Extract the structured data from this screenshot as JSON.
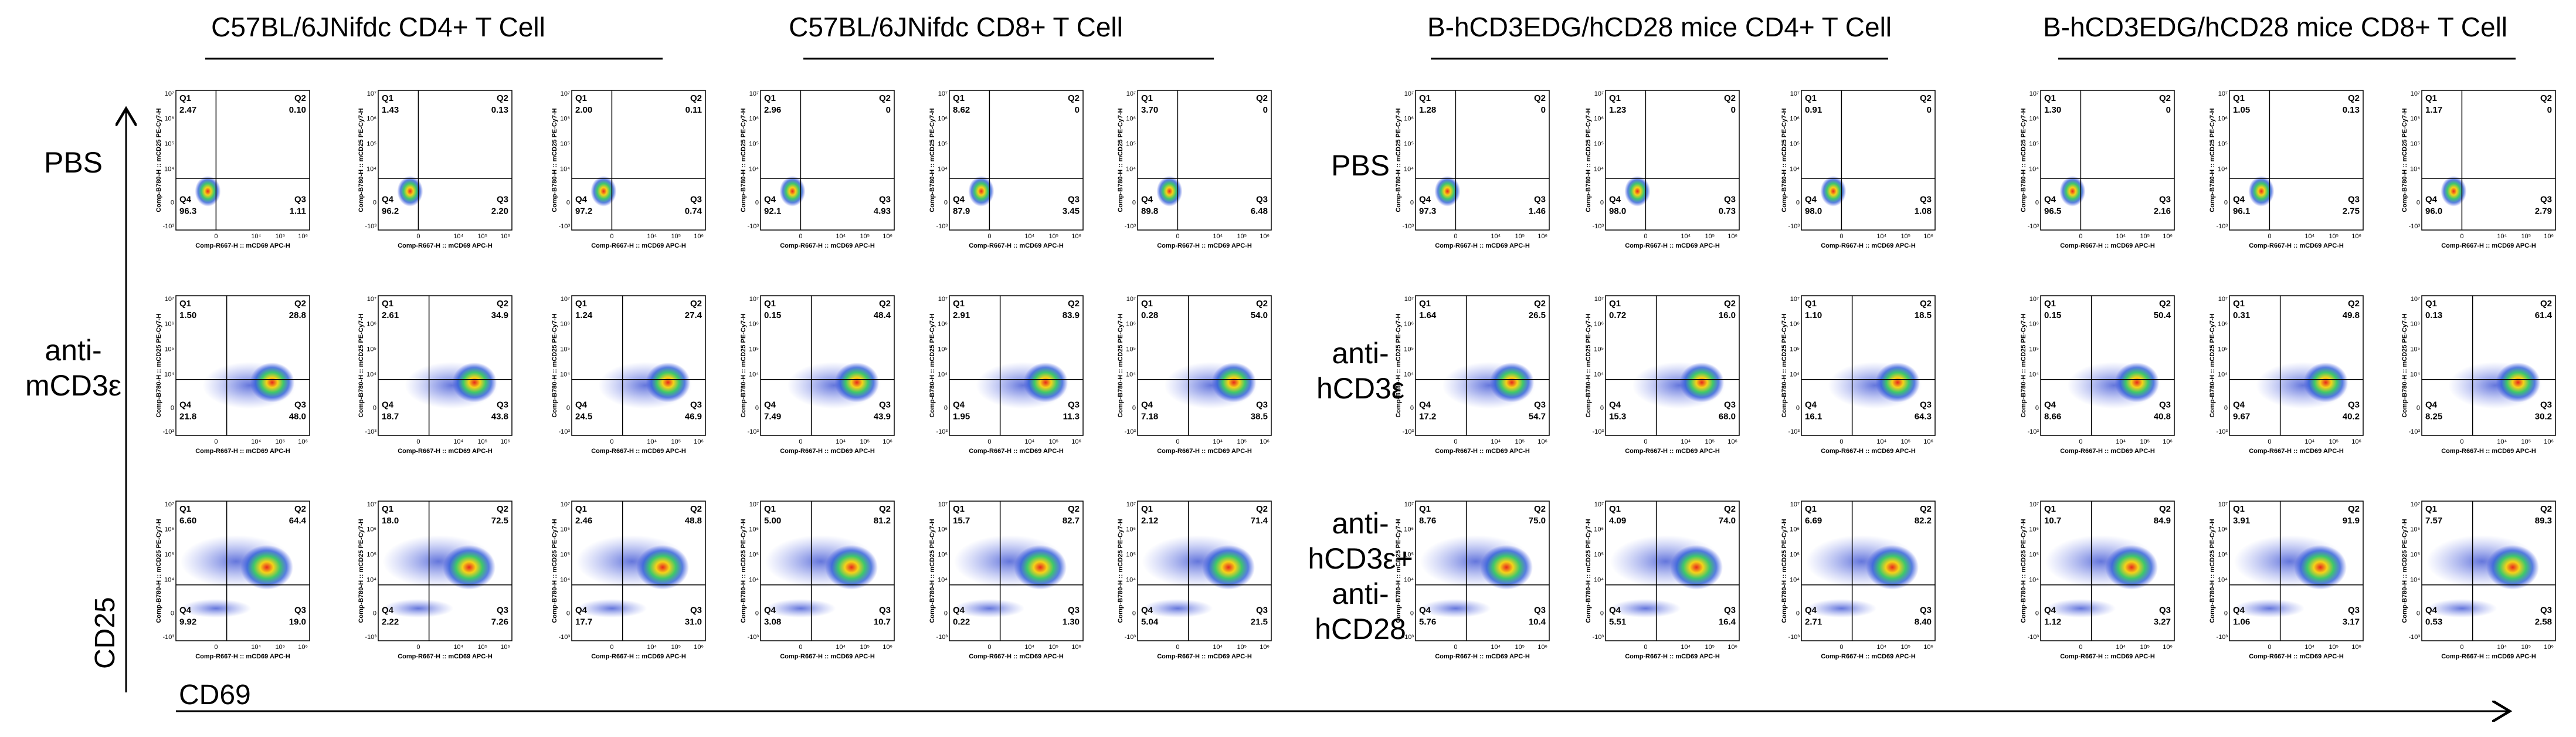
{
  "axis_labels": {
    "y": "CD25",
    "x": "CD69"
  },
  "plot_axes": {
    "x_title": "Comp-R667-H :: mCD69 APC-H",
    "y_title": "Comp-B780-H :: mCD25 PE-Cy7-H",
    "x_ticks": [
      "0",
      "10⁴",
      "10⁵",
      "10⁶"
    ],
    "y_ticks": [
      "10⁷",
      "10⁶",
      "10⁵",
      "10⁴",
      "0",
      "-10³"
    ]
  },
  "quadrant_names": [
    "Q1",
    "Q2",
    "Q3",
    "Q4"
  ],
  "row_labels": {
    "left": [
      "PBS",
      "anti-mCD3ε"
    ],
    "middle": [
      "PBS",
      "anti-hCD3ε",
      "anti-hCD3ε+anti-hCD28"
    ]
  },
  "groups": [
    {
      "title": "C57BL/6JNifdc CD4+ T Cell",
      "rows": [
        [
          {
            "q1": "2.47",
            "q2": "0.10",
            "q3": "1.11",
            "q4": "96.3"
          },
          {
            "q1": "1.43",
            "q2": "0.13",
            "q3": "2.20",
            "q4": "96.2"
          },
          {
            "q1": "2.00",
            "q2": "0.11",
            "q3": "0.74",
            "q4": "97.2"
          }
        ],
        [
          {
            "q1": "1.50",
            "q2": "28.8",
            "q3": "48.0",
            "q4": "21.8"
          },
          {
            "q1": "2.61",
            "q2": "34.9",
            "q3": "43.8",
            "q4": "18.7"
          },
          {
            "q1": "1.24",
            "q2": "27.4",
            "q3": "46.9",
            "q4": "24.5"
          }
        ],
        [
          {
            "q1": "6.60",
            "q2": "64.4",
            "q3": "19.0",
            "q4": "9.92"
          },
          {
            "q1": "18.0",
            "q2": "72.5",
            "q3": "7.26",
            "q4": "2.22"
          },
          {
            "q1": "2.46",
            "q2": "48.8",
            "q3": "31.0",
            "q4": "17.7"
          }
        ]
      ]
    },
    {
      "title": "C57BL/6JNifdc CD8+ T Cell",
      "rows": [
        [
          {
            "q1": "2.96",
            "q2": "0",
            "q3": "4.93",
            "q4": "92.1"
          },
          {
            "q1": "8.62",
            "q2": "0",
            "q3": "3.45",
            "q4": "87.9"
          },
          {
            "q1": "3.70",
            "q2": "0",
            "q3": "6.48",
            "q4": "89.8"
          }
        ],
        [
          {
            "q1": "0.15",
            "q2": "48.4",
            "q3": "43.9",
            "q4": "7.49"
          },
          {
            "q1": "2.91",
            "q2": "83.9",
            "q3": "11.3",
            "q4": "1.95"
          },
          {
            "q1": "0.28",
            "q2": "54.0",
            "q3": "38.5",
            "q4": "7.18"
          }
        ],
        [
          {
            "q1": "5.00",
            "q2": "81.2",
            "q3": "10.7",
            "q4": "3.08"
          },
          {
            "q1": "15.7",
            "q2": "82.7",
            "q3": "1.30",
            "q4": "0.22"
          },
          {
            "q1": "2.12",
            "q2": "71.4",
            "q3": "21.5",
            "q4": "5.04"
          }
        ]
      ]
    },
    {
      "title": "B-hCD3EDG/hCD28 mice CD4+ T Cell",
      "rows": [
        [
          {
            "q1": "1.28",
            "q2": "0",
            "q3": "1.46",
            "q4": "97.3"
          },
          {
            "q1": "1.23",
            "q2": "0",
            "q3": "0.73",
            "q4": "98.0"
          },
          {
            "q1": "0.91",
            "q2": "0",
            "q3": "1.08",
            "q4": "98.0"
          }
        ],
        [
          {
            "q1": "1.64",
            "q2": "26.5",
            "q3": "54.7",
            "q4": "17.2"
          },
          {
            "q1": "0.72",
            "q2": "16.0",
            "q3": "68.0",
            "q4": "15.3"
          },
          {
            "q1": "1.10",
            "q2": "18.5",
            "q3": "64.3",
            "q4": "16.1"
          }
        ],
        [
          {
            "q1": "8.76",
            "q2": "75.0",
            "q3": "10.4",
            "q4": "5.76"
          },
          {
            "q1": "4.09",
            "q2": "74.0",
            "q3": "16.4",
            "q4": "5.51"
          },
          {
            "q1": "6.69",
            "q2": "82.2",
            "q3": "8.40",
            "q4": "2.71"
          }
        ]
      ]
    },
    {
      "title": "B-hCD3EDG/hCD28 mice CD8+ T Cell",
      "rows": [
        [
          {
            "q1": "1.30",
            "q2": "0",
            "q3": "2.16",
            "q4": "96.5"
          },
          {
            "q1": "1.05",
            "q2": "0.13",
            "q3": "2.75",
            "q4": "96.1"
          },
          {
            "q1": "1.17",
            "q2": "0",
            "q3": "2.79",
            "q4": "96.0"
          }
        ],
        [
          {
            "q1": "0.15",
            "q2": "50.4",
            "q3": "40.8",
            "q4": "8.66"
          },
          {
            "q1": "0.31",
            "q2": "49.8",
            "q3": "40.2",
            "q4": "9.67"
          },
          {
            "q1": "0.13",
            "q2": "61.4",
            "q3": "30.2",
            "q4": "8.25"
          }
        ],
        [
          {
            "q1": "10.7",
            "q2": "84.9",
            "q3": "3.27",
            "q4": "1.12"
          },
          {
            "q1": "3.91",
            "q2": "91.9",
            "q3": "3.17",
            "q4": "1.06"
          },
          {
            "q1": "7.57",
            "q2": "89.3",
            "q3": "2.58",
            "q4": "0.53"
          }
        ]
      ]
    }
  ]
}
